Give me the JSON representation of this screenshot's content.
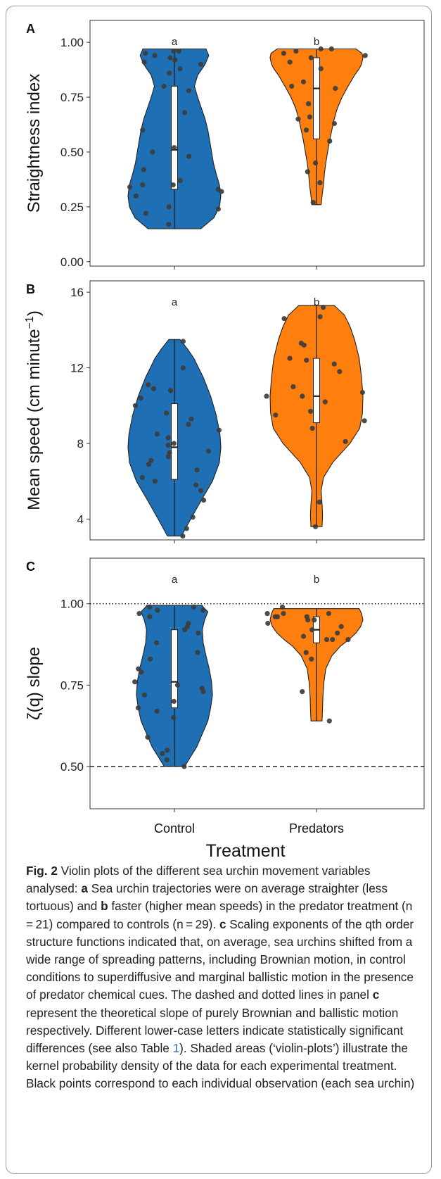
{
  "chart_data": [
    {
      "type": "violin",
      "panel": "A",
      "ylabel": "Straightness index",
      "categories": [
        "Control",
        "Predators"
      ],
      "ylim": [
        -0.02,
        1.1
      ],
      "yticks": [
        0.0,
        0.25,
        0.5,
        0.75,
        1.0
      ],
      "ytick_labels": [
        "0.00",
        "0.25",
        "0.50",
        "0.75",
        "1.00"
      ],
      "letters": [
        "a",
        "b"
      ],
      "reference_lines": [],
      "series": [
        {
          "name": "Control",
          "color": "#1f6fb4",
          "range": [
            0.15,
            0.97
          ],
          "median": 0.51,
          "q1": 0.33,
          "q3": 0.8,
          "density": [
            [
              0.15,
              0.57
            ],
            [
              0.2,
              0.85
            ],
            [
              0.25,
              0.97
            ],
            [
              0.3,
              1.0
            ],
            [
              0.35,
              0.97
            ],
            [
              0.4,
              0.9
            ],
            [
              0.45,
              0.84
            ],
            [
              0.5,
              0.8
            ],
            [
              0.55,
              0.76
            ],
            [
              0.6,
              0.72
            ],
            [
              0.65,
              0.66
            ],
            [
              0.7,
              0.58
            ],
            [
              0.75,
              0.5
            ],
            [
              0.8,
              0.43
            ],
            [
              0.85,
              0.5
            ],
            [
              0.9,
              0.66
            ],
            [
              0.94,
              0.74
            ],
            [
              0.97,
              0.68
            ]
          ],
          "points": [
            0.96,
            0.96,
            0.95,
            0.94,
            0.93,
            0.92,
            0.91,
            0.9,
            0.88,
            0.86,
            0.8,
            0.78,
            0.68,
            0.6,
            0.52,
            0.5,
            0.48,
            0.42,
            0.37,
            0.35,
            0.35,
            0.34,
            0.33,
            0.32,
            0.3,
            0.25,
            0.24,
            0.22,
            0.17
          ]
        },
        {
          "name": "Predators",
          "color": "#ff7f0e",
          "range": [
            0.26,
            0.97
          ],
          "median": 0.79,
          "q1": 0.56,
          "q3": 0.93,
          "density": [
            [
              0.26,
              0.1
            ],
            [
              0.3,
              0.12
            ],
            [
              0.35,
              0.15
            ],
            [
              0.4,
              0.17
            ],
            [
              0.45,
              0.2
            ],
            [
              0.5,
              0.24
            ],
            [
              0.55,
              0.28
            ],
            [
              0.6,
              0.33
            ],
            [
              0.65,
              0.38
            ],
            [
              0.7,
              0.45
            ],
            [
              0.75,
              0.55
            ],
            [
              0.8,
              0.68
            ],
            [
              0.85,
              0.82
            ],
            [
              0.88,
              0.92
            ],
            [
              0.9,
              0.97
            ],
            [
              0.93,
              1.0
            ],
            [
              0.95,
              0.98
            ],
            [
              0.97,
              0.85
            ]
          ],
          "points": [
            0.97,
            0.97,
            0.96,
            0.95,
            0.94,
            0.93,
            0.91,
            0.88,
            0.82,
            0.8,
            0.79,
            0.72,
            0.66,
            0.65,
            0.63,
            0.6,
            0.55,
            0.45,
            0.41,
            0.36,
            0.27
          ]
        }
      ]
    },
    {
      "type": "violin",
      "panel": "B",
      "ylabel": "Mean speed (cm minute⁻¹)",
      "categories": [
        "Control",
        "Predators"
      ],
      "ylim": [
        2.9,
        16.6
      ],
      "yticks": [
        4,
        8,
        12,
        16
      ],
      "ytick_labels": [
        "4",
        "8",
        "12",
        "16"
      ],
      "letters": [
        "a",
        "b"
      ],
      "reference_lines": [],
      "series": [
        {
          "name": "Control",
          "color": "#1f6fb4",
          "range": [
            3.1,
            13.5
          ],
          "median": 7.8,
          "q1": 6.1,
          "q3": 10.1,
          "density": [
            [
              3.1,
              0.15
            ],
            [
              4.0,
              0.35
            ],
            [
              5.0,
              0.58
            ],
            [
              6.0,
              0.82
            ],
            [
              7.0,
              0.97
            ],
            [
              7.8,
              1.0
            ],
            [
              8.5,
              0.98
            ],
            [
              9.5,
              0.9
            ],
            [
              10.5,
              0.78
            ],
            [
              11.5,
              0.62
            ],
            [
              12.5,
              0.42
            ],
            [
              13.0,
              0.28
            ],
            [
              13.5,
              0.12
            ]
          ],
          "points": [
            13.4,
            12.0,
            11.1,
            10.9,
            10.8,
            10.4,
            10.0,
            9.6,
            9.3,
            9.0,
            8.7,
            8.5,
            8.3,
            8.0,
            7.9,
            7.6,
            7.5,
            7.3,
            7.1,
            6.9,
            6.6,
            6.2,
            6.0,
            5.8,
            5.5,
            5.0,
            4.1,
            3.5,
            3.1
          ]
        },
        {
          "name": "Predators",
          "color": "#ff7f0e",
          "range": [
            3.6,
            15.3
          ],
          "median": 10.5,
          "q1": 9.1,
          "q3": 12.5,
          "density": [
            [
              3.6,
              0.12
            ],
            [
              4.2,
              0.13
            ],
            [
              4.8,
              0.12
            ],
            [
              5.5,
              0.1
            ],
            [
              6.2,
              0.15
            ],
            [
              7.0,
              0.35
            ],
            [
              8.0,
              0.72
            ],
            [
              8.8,
              0.93
            ],
            [
              9.6,
              0.99
            ],
            [
              10.5,
              1.0
            ],
            [
              11.5,
              0.97
            ],
            [
              12.5,
              0.92
            ],
            [
              13.5,
              0.82
            ],
            [
              14.2,
              0.72
            ],
            [
              14.8,
              0.6
            ],
            [
              15.3,
              0.38
            ]
          ],
          "points": [
            15.2,
            14.7,
            14.6,
            13.3,
            13.2,
            12.5,
            12.4,
            12.2,
            11.8,
            11.0,
            10.7,
            10.5,
            10.5,
            10.2,
            9.7,
            9.5,
            9.2,
            8.8,
            8.1,
            4.9,
            3.6
          ]
        }
      ]
    },
    {
      "type": "violin",
      "panel": "C",
      "ylabel": "ζ(q) slope",
      "categories": [
        "Control",
        "Predators"
      ],
      "xlabel": "Treatment",
      "ylim": [
        0.37,
        1.14
      ],
      "yticks": [
        0.5,
        0.75,
        1.0
      ],
      "ytick_labels": [
        "0.50",
        "0.75",
        "1.00"
      ],
      "letters": [
        "a",
        "b"
      ],
      "reference_lines": [
        {
          "value": 1.0,
          "style": "dotted"
        },
        {
          "value": 0.5,
          "style": "dashed"
        }
      ],
      "series": [
        {
          "name": "Control",
          "color": "#1f6fb4",
          "range": [
            0.5,
            0.995
          ],
          "median": 0.76,
          "q1": 0.68,
          "q3": 0.92,
          "density": [
            [
              0.5,
              0.22
            ],
            [
              0.53,
              0.35
            ],
            [
              0.56,
              0.48
            ],
            [
              0.6,
              0.6
            ],
            [
              0.64,
              0.72
            ],
            [
              0.68,
              0.78
            ],
            [
              0.72,
              0.82
            ],
            [
              0.76,
              0.8
            ],
            [
              0.8,
              0.75
            ],
            [
              0.84,
              0.68
            ],
            [
              0.88,
              0.62
            ],
            [
              0.92,
              0.6
            ],
            [
              0.95,
              0.65
            ],
            [
              0.975,
              0.72
            ],
            [
              0.99,
              0.62
            ],
            [
              0.995,
              0.6
            ]
          ],
          "points": [
            0.99,
            0.99,
            0.98,
            0.98,
            0.97,
            0.96,
            0.94,
            0.93,
            0.92,
            0.91,
            0.88,
            0.85,
            0.83,
            0.8,
            0.79,
            0.76,
            0.75,
            0.74,
            0.73,
            0.72,
            0.7,
            0.68,
            0.67,
            0.65,
            0.59,
            0.55,
            0.54,
            0.52,
            0.5
          ]
        },
        {
          "name": "Predators",
          "color": "#ff7f0e",
          "range": [
            0.64,
            0.985
          ],
          "median": 0.92,
          "q1": 0.88,
          "q3": 0.96,
          "density": [
            [
              0.64,
              0.12
            ],
            [
              0.68,
              0.13
            ],
            [
              0.72,
              0.14
            ],
            [
              0.76,
              0.16
            ],
            [
              0.8,
              0.2
            ],
            [
              0.84,
              0.33
            ],
            [
              0.87,
              0.52
            ],
            [
              0.89,
              0.7
            ],
            [
              0.91,
              0.85
            ],
            [
              0.93,
              0.95
            ],
            [
              0.95,
              1.0
            ],
            [
              0.97,
              0.97
            ],
            [
              0.985,
              0.92
            ]
          ],
          "points": [
            0.99,
            0.97,
            0.97,
            0.97,
            0.96,
            0.96,
            0.96,
            0.95,
            0.95,
            0.94,
            0.93,
            0.92,
            0.91,
            0.9,
            0.89,
            0.89,
            0.89,
            0.85,
            0.83,
            0.73,
            0.64
          ]
        }
      ]
    }
  ],
  "caption": {
    "fig_label": "Fig. 2",
    "parts": [
      {
        "t": "  Violin plots of the different sea urchin movement variables analysed: "
      },
      {
        "b": "a"
      },
      {
        "t": " Sea urchin trajectories were on average straighter (less tortuous) and "
      },
      {
        "b": "b"
      },
      {
        "t": " faster (higher mean speeds) in the predator treatment (n = 21) compared to controls (n = 29). "
      },
      {
        "b": "c"
      },
      {
        "t": " Scaling exponents of the qth order structure functions indicated that, on average, sea urchins shifted from a wide range of spreading patterns, including Brownian motion, in control conditions to superdiffusive and marginal ballistic motion in the presence of predator chemical cues. The dashed and dotted lines in panel "
      },
      {
        "b": "c"
      },
      {
        "t": " represent the theoretical slope of purely Brownian and ballistic motion respectively. Different lower-case letters indicate statistically significant differences (see also Table "
      },
      {
        "ref": "1"
      },
      {
        "t": "). Shaded areas (‘violin-plots’) illustrate the kernel probability density of the data for each experimental treatment. Black points correspond to each individual observation (each sea urchin)"
      }
    ]
  }
}
